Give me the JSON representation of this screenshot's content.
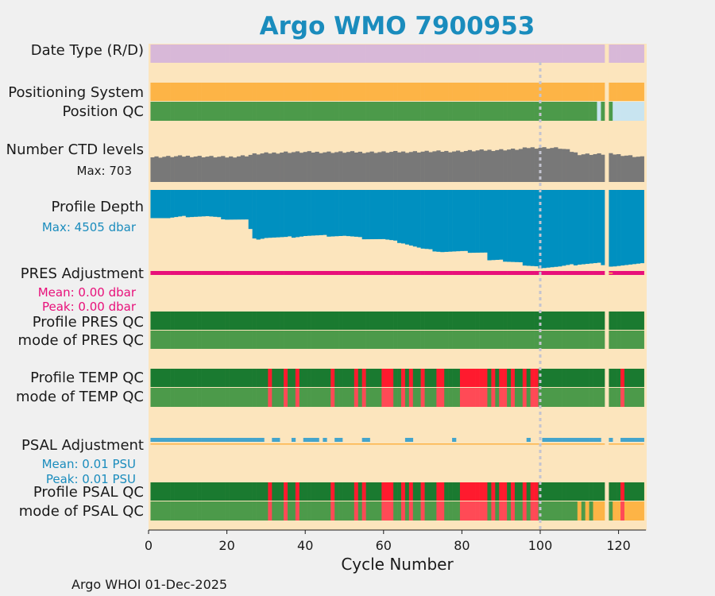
{
  "chart_data": {
    "type": "status-timeline",
    "title": "Argo WMO 7900953",
    "xlabel": "Cycle Number",
    "xlim": [
      0,
      127
    ],
    "xticks": [
      0,
      20,
      40,
      60,
      80,
      100,
      120
    ],
    "footer": "Argo WHOI 01-Dec-2025",
    "marker_cycle": 100,
    "missing_cycles": [
      117
    ],
    "colors": {
      "background": "#fce5bd",
      "date_type": "#d8b8d8",
      "positioning": "#fdb446",
      "position_qc": "#4c9a4a",
      "position_qc_light": "#c8e4f0",
      "ctd": "#787878",
      "depth": "#0090c0",
      "pres_adj": "#e8107a",
      "qc_good": "#1a7a30",
      "qc_mode_good": "#4c9a4a",
      "qc_bad": "#ff1a2e",
      "qc_mode_bad": "#ff4a56",
      "psal_adj": "#44a4cc",
      "psal_line": "#fdb446",
      "qc_orange": "#fdb446",
      "title": "#1a8cbd"
    },
    "rows": {
      "date_type": "Date Type (R/D)",
      "positioning": "Positioning System",
      "position_qc": "Position QC",
      "ctd": "Number CTD levels",
      "ctd_max": "Max: 703",
      "depth": "Profile Depth",
      "depth_max": "Max: 4505 dbar",
      "pres_adj": "PRES Adjustment",
      "pres_mean": "Mean: 0.00 dbar",
      "pres_peak": "Peak: 0.00 dbar",
      "pres_qc": "Profile PRES QC",
      "pres_mode": "mode of PRES QC",
      "temp_qc": "Profile TEMP QC",
      "temp_mode": "mode of TEMP QC",
      "psal_adj": "PSAL Adjustment",
      "psal_mean": "Mean: 0.01 PSU",
      "psal_peak": "Peak: 0.01 PSU",
      "psal_qc": "Profile PSAL QC",
      "psal_mode": "mode of PSAL QC"
    },
    "ctd_levels_max": 703,
    "ctd_levels_keypoints": [
      [
        1,
        500
      ],
      [
        10,
        520
      ],
      [
        20,
        500
      ],
      [
        25,
        530
      ],
      [
        27,
        560
      ],
      [
        35,
        600
      ],
      [
        45,
        600
      ],
      [
        60,
        600
      ],
      [
        70,
        610
      ],
      [
        80,
        620
      ],
      [
        87,
        640
      ],
      [
        95,
        660
      ],
      [
        97,
        690
      ],
      [
        100,
        690
      ],
      [
        105,
        680
      ],
      [
        107,
        640
      ],
      [
        110,
        560
      ],
      [
        116,
        560
      ],
      [
        119,
        560
      ],
      [
        126,
        500
      ]
    ],
    "depth_max_dbar": 4505,
    "depth_keypoints": [
      [
        1,
        1550
      ],
      [
        5,
        1600
      ],
      [
        10,
        1500
      ],
      [
        15,
        1500
      ],
      [
        20,
        1650
      ],
      [
        25,
        1700
      ],
      [
        27,
        2800
      ],
      [
        30,
        2700
      ],
      [
        35,
        2700
      ],
      [
        40,
        2600
      ],
      [
        45,
        2600
      ],
      [
        50,
        2600
      ],
      [
        55,
        2750
      ],
      [
        60,
        2800
      ],
      [
        65,
        3000
      ],
      [
        70,
        3350
      ],
      [
        75,
        3500
      ],
      [
        80,
        3500
      ],
      [
        86,
        3550
      ],
      [
        87,
        4000
      ],
      [
        90,
        4000
      ],
      [
        95,
        4100
      ],
      [
        96,
        4300
      ],
      [
        100,
        4400
      ],
      [
        105,
        4350
      ],
      [
        110,
        4200
      ],
      [
        115,
        4150
      ],
      [
        116,
        4300
      ],
      [
        119,
        4300
      ],
      [
        126,
        4200
      ]
    ],
    "temp_bad_cycles": [
      31,
      35,
      38,
      47,
      53,
      55,
      60,
      61,
      62,
      65,
      67,
      70,
      74,
      75,
      80,
      81,
      82,
      83,
      84,
      85,
      86,
      88,
      90,
      91,
      93,
      96,
      98,
      99,
      121
    ],
    "psal_bad_cycles": [
      31,
      35,
      38,
      47,
      53,
      55,
      60,
      61,
      62,
      65,
      67,
      70,
      74,
      75,
      80,
      81,
      82,
      83,
      84,
      85,
      86,
      88,
      90,
      91,
      93,
      96,
      98,
      99,
      121
    ],
    "psal_mode_orange_cycles": [
      110,
      112,
      114,
      115,
      116,
      119,
      120,
      122,
      123,
      124,
      125,
      126
    ],
    "position_qc_light_cycles": [
      115,
      119,
      120,
      121,
      122,
      123,
      124,
      125,
      126
    ],
    "position_qc_light_start_cycle": 115,
    "psal_adj_present_cycles": [
      1,
      2,
      3,
      4,
      5,
      6,
      7,
      8,
      9,
      10,
      11,
      12,
      13,
      14,
      15,
      16,
      17,
      18,
      19,
      20,
      21,
      22,
      23,
      24,
      25,
      26,
      27,
      28,
      29,
      32,
      33,
      37,
      40,
      41,
      42,
      43,
      45,
      48,
      49,
      55,
      56,
      66,
      67,
      78,
      97,
      101,
      102,
      103,
      104,
      105,
      106,
      107,
      108,
      109,
      110,
      111,
      112,
      113,
      114,
      115,
      118,
      121,
      122,
      123,
      124,
      125,
      126
    ]
  }
}
